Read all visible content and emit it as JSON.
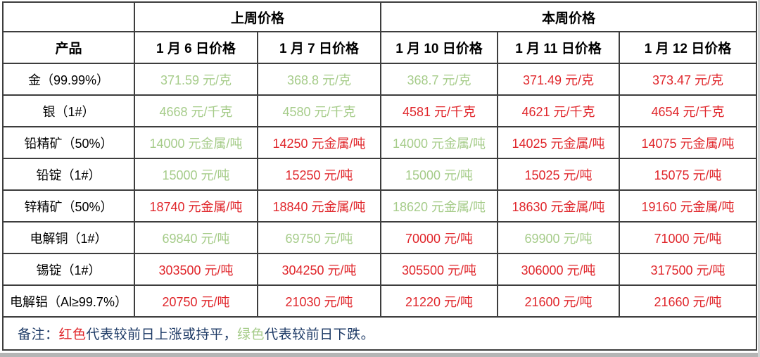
{
  "colors": {
    "red": "#e0262b",
    "green": "#a6cc8a",
    "navy": "#1d3a66",
    "header_text": "#000000",
    "border": "#3d3d3d"
  },
  "table": {
    "corner_label": "",
    "group_headers": [
      {
        "label": "上周价格",
        "colspan": 2
      },
      {
        "label": "本周价格",
        "colspan": 3
      }
    ],
    "product_header": "产品",
    "date_headers": [
      "1 月 6 日价格",
      "1 月 7 日价格",
      "1 月 10 日价格",
      "1 月 11 日价格",
      "1 月 12 日价格"
    ],
    "rows": [
      {
        "product": "金（99.99%）",
        "prices": [
          {
            "text": "371.59 元/克",
            "trend": "down"
          },
          {
            "text": "368.8 元/克",
            "trend": "down"
          },
          {
            "text": "368.7 元/克",
            "trend": "down"
          },
          {
            "text": "371.49 元/克",
            "trend": "up"
          },
          {
            "text": "373.47 元/克",
            "trend": "up"
          }
        ]
      },
      {
        "product": "银（1#）",
        "prices": [
          {
            "text": "4668 元/千克",
            "trend": "down"
          },
          {
            "text": "4580 元/千克",
            "trend": "down"
          },
          {
            "text": "4581 元/千克",
            "trend": "up"
          },
          {
            "text": "4621 元/千克",
            "trend": "up"
          },
          {
            "text": "4654 元/千克",
            "trend": "up"
          }
        ]
      },
      {
        "product": "铅精矿（50%）",
        "prices": [
          {
            "text": "14000 元金属/吨",
            "trend": "down"
          },
          {
            "text": "14250 元金属/吨",
            "trend": "up"
          },
          {
            "text": "14000 元金属/吨",
            "trend": "down"
          },
          {
            "text": "14025 元金属/吨",
            "trend": "up"
          },
          {
            "text": "14075 元金属/吨",
            "trend": "up"
          }
        ]
      },
      {
        "product": "铅锭（1#）",
        "prices": [
          {
            "text": "15000 元/吨",
            "trend": "down"
          },
          {
            "text": "15250 元/吨",
            "trend": "up"
          },
          {
            "text": "15000 元/吨",
            "trend": "down"
          },
          {
            "text": "15025 元/吨",
            "trend": "up"
          },
          {
            "text": "15075 元/吨",
            "trend": "up"
          }
        ]
      },
      {
        "product": "锌精矿（50%）",
        "prices": [
          {
            "text": "18740 元金属/吨",
            "trend": "up"
          },
          {
            "text": "18840 元金属/吨",
            "trend": "up"
          },
          {
            "text": "18620 元金属/吨",
            "trend": "down"
          },
          {
            "text": "18630 元金属/吨",
            "trend": "up"
          },
          {
            "text": "19160 元金属/吨",
            "trend": "up"
          }
        ]
      },
      {
        "product": "电解铜（1#）",
        "prices": [
          {
            "text": "69840 元/吨",
            "trend": "down"
          },
          {
            "text": "69750 元/吨",
            "trend": "down"
          },
          {
            "text": "70000 元/吨",
            "trend": "up"
          },
          {
            "text": "69900 元/吨",
            "trend": "down"
          },
          {
            "text": "71000 元/吨",
            "trend": "up"
          }
        ]
      },
      {
        "product": "锡锭（1#）",
        "prices": [
          {
            "text": "303500 元/吨",
            "trend": "up"
          },
          {
            "text": "304250 元/吨",
            "trend": "up"
          },
          {
            "text": "305500 元/吨",
            "trend": "up"
          },
          {
            "text": "306000 元/吨",
            "trend": "up"
          },
          {
            "text": "317500 元/吨",
            "trend": "up"
          }
        ]
      },
      {
        "product": "电解铝（Al≥99.7%）",
        "prices": [
          {
            "text": "20750 元/吨",
            "trend": "up"
          },
          {
            "text": "21030 元/吨",
            "trend": "up"
          },
          {
            "text": "21220 元/吨",
            "trend": "up"
          },
          {
            "text": "21600 元/吨",
            "trend": "up"
          },
          {
            "text": "21660 元/吨",
            "trend": "up"
          }
        ]
      }
    ],
    "note": {
      "segments": [
        {
          "text": "备注：",
          "color": "navy"
        },
        {
          "text": "红色",
          "color": "red"
        },
        {
          "text": "代表较前日上涨或持平，",
          "color": "navy"
        },
        {
          "text": "绿色",
          "color": "green"
        },
        {
          "text": "代表较前日下跌。",
          "color": "navy"
        }
      ]
    }
  }
}
